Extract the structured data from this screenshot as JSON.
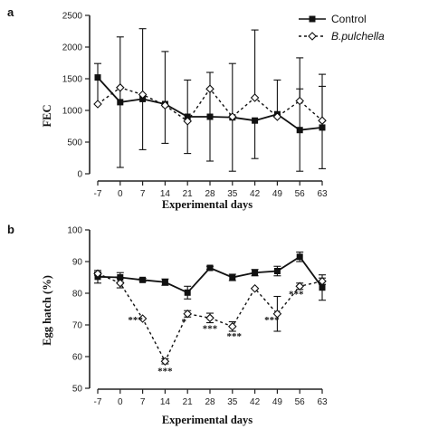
{
  "legend": {
    "control": "Control",
    "treatment": "B.pulchella"
  },
  "chart_data": [
    {
      "panel": "a",
      "type": "line",
      "xlabel": "Experimental days",
      "ylabel": "FEC",
      "categories": [
        "-7",
        "0",
        "7",
        "14",
        "21",
        "28",
        "35",
        "42",
        "49",
        "56",
        "63"
      ],
      "ylim": [
        0,
        2500
      ],
      "yticks": [
        0,
        500,
        1000,
        1500,
        2000,
        2500
      ],
      "grid": false,
      "legend_position": "top-right",
      "series": [
        {
          "name": "Control",
          "style": "solid",
          "marker": "square",
          "values": [
            1520,
            1130,
            1180,
            1100,
            900,
            900,
            890,
            840,
            940,
            690,
            730
          ],
          "error": [
            0,
            1030,
            0,
            0,
            0,
            700,
            850,
            0,
            0,
            650,
            650
          ],
          "error_dir": "up"
        },
        {
          "name": "B.pulchella",
          "style": "dashed",
          "marker": "diamond",
          "values": [
            1100,
            1360,
            1250,
            1080,
            830,
            1340,
            900,
            1200,
            900,
            1150,
            840
          ],
          "error": [
            640,
            0,
            1040,
            850,
            650,
            0,
            0,
            1070,
            580,
            680,
            730
          ],
          "error_dir": "up"
        }
      ],
      "error_down_control": [
        0,
        1030,
        800,
        620,
        580,
        700,
        850,
        600,
        0,
        650,
        650
      ],
      "error_down_treatment": [
        0,
        0,
        0,
        0,
        0,
        0,
        0,
        0,
        0,
        0,
        0
      ]
    },
    {
      "panel": "b",
      "type": "line",
      "xlabel": "Experimental days",
      "ylabel": "Egg hatch (%)",
      "categories": [
        "-7",
        "0",
        "7",
        "14",
        "21",
        "28",
        "35",
        "42",
        "49",
        "56",
        "63"
      ],
      "ylim": [
        50,
        100
      ],
      "yticks": [
        50,
        60,
        70,
        80,
        90,
        100
      ],
      "grid": false,
      "series": [
        {
          "name": "Control",
          "style": "solid",
          "marker": "square",
          "values": [
            85.2,
            85.0,
            84.2,
            83.5,
            80.2,
            88.0,
            85.0,
            86.5,
            87.0,
            91.5,
            81.8
          ],
          "error": [
            2.0,
            1.5,
            0.5,
            1.0,
            2.0,
            0.5,
            1.0,
            1.0,
            1.5,
            1.5,
            4.0
          ]
        },
        {
          "name": "B.pulchella",
          "style": "dashed",
          "marker": "diamond",
          "values": [
            86.2,
            83.2,
            72.0,
            58.5,
            73.5,
            72.2,
            69.5,
            81.5,
            73.5,
            82.2,
            83.8
          ],
          "error": [
            0.5,
            1.5,
            0,
            0.8,
            1.0,
            1.5,
            1.5,
            0,
            5.5,
            1.0,
            1.0
          ]
        }
      ],
      "annotations": [
        {
          "category": "7",
          "text": "***"
        },
        {
          "category": "14",
          "text": "***"
        },
        {
          "category": "21",
          "text": "*"
        },
        {
          "category": "28",
          "text": "***"
        },
        {
          "category": "35",
          "text": "***"
        },
        {
          "category": "49",
          "text": "***"
        },
        {
          "category": "56",
          "text": "***"
        }
      ]
    }
  ]
}
